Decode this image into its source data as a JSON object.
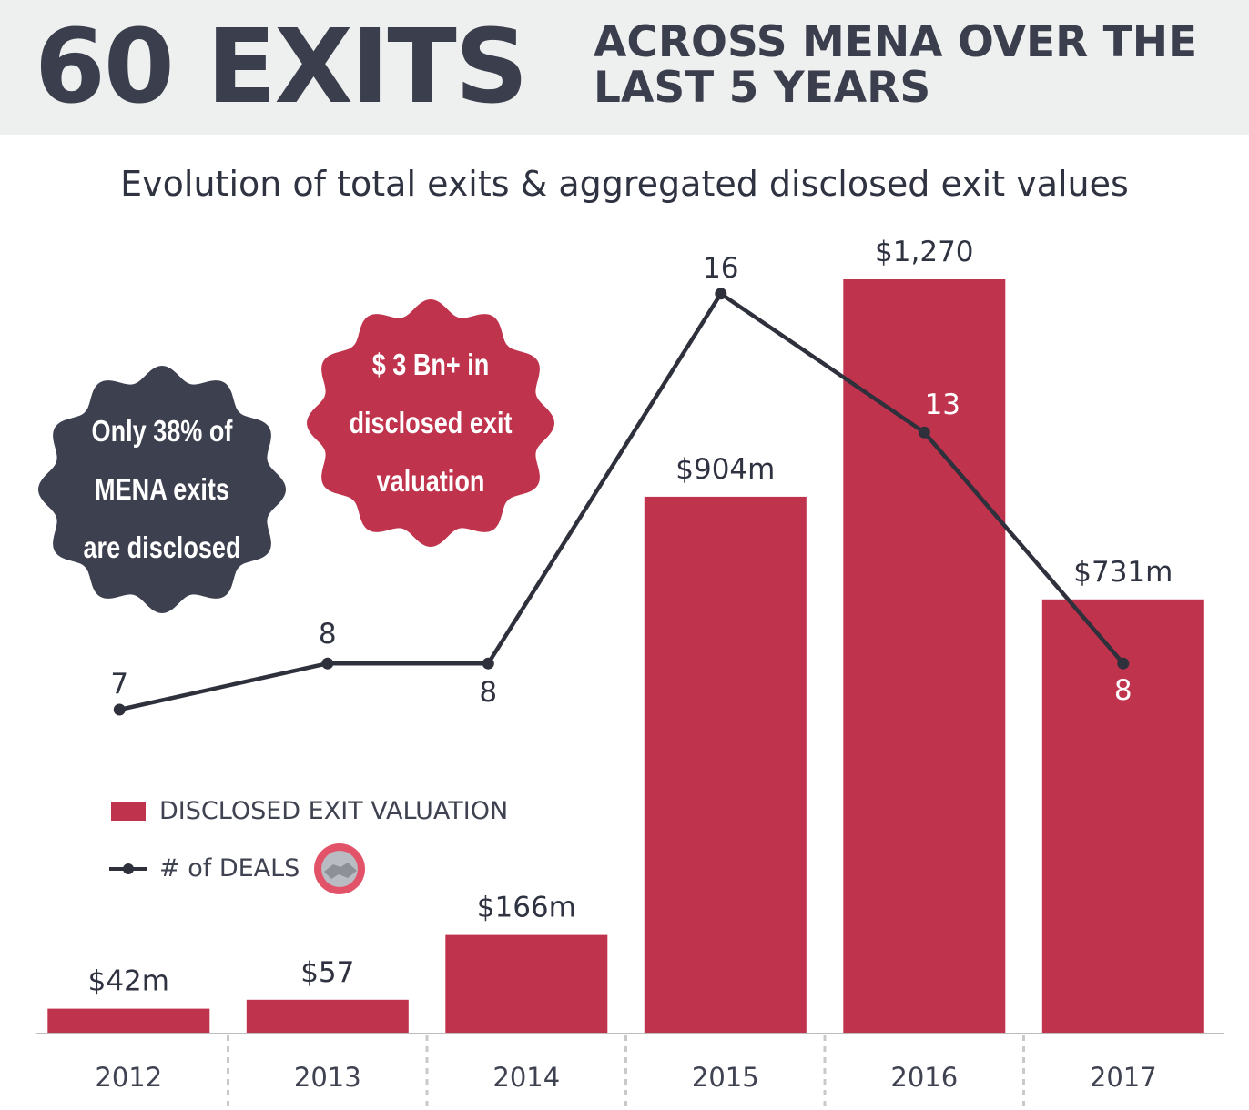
{
  "header": {
    "big_title": "60 EXITS",
    "subtitle_line1": "ACROSS MENA OVER THE",
    "subtitle_line2": "LAST 5 YEARS"
  },
  "badges": {
    "dark": {
      "line1": "Only 38% of",
      "line2": "MENA exits",
      "line3": "are disclosed"
    },
    "red": {
      "line1": "$ 3 Bn+ in",
      "line2": "disclosed exit",
      "line3": "valuation"
    }
  },
  "colors": {
    "bar": "#c0334d",
    "line": "#2e303c",
    "dark_badge": "#3d404f",
    "header_bg": "#eeefef"
  },
  "chart_data": {
    "type": "bar",
    "title": "Evolution of total exits & aggregated disclosed exit values",
    "categories": [
      "2012",
      "2013",
      "2014",
      "2015",
      "2016",
      "2017"
    ],
    "series": [
      {
        "name": "DISCLOSED EXIT VALUATION",
        "type": "bar",
        "values": [
          42,
          57,
          166,
          904,
          1270,
          731
        ],
        "labels": [
          "$42m",
          "$57",
          "$166m",
          "$904m",
          "$1,270",
          "$731m"
        ]
      },
      {
        "name": "# of DEALS",
        "type": "line",
        "values": [
          7,
          8,
          8,
          16,
          13,
          8
        ],
        "labels": [
          "7",
          "8",
          "8",
          "16",
          "13",
          "8"
        ]
      }
    ],
    "legend_position": "bottom-left",
    "grid": false
  }
}
